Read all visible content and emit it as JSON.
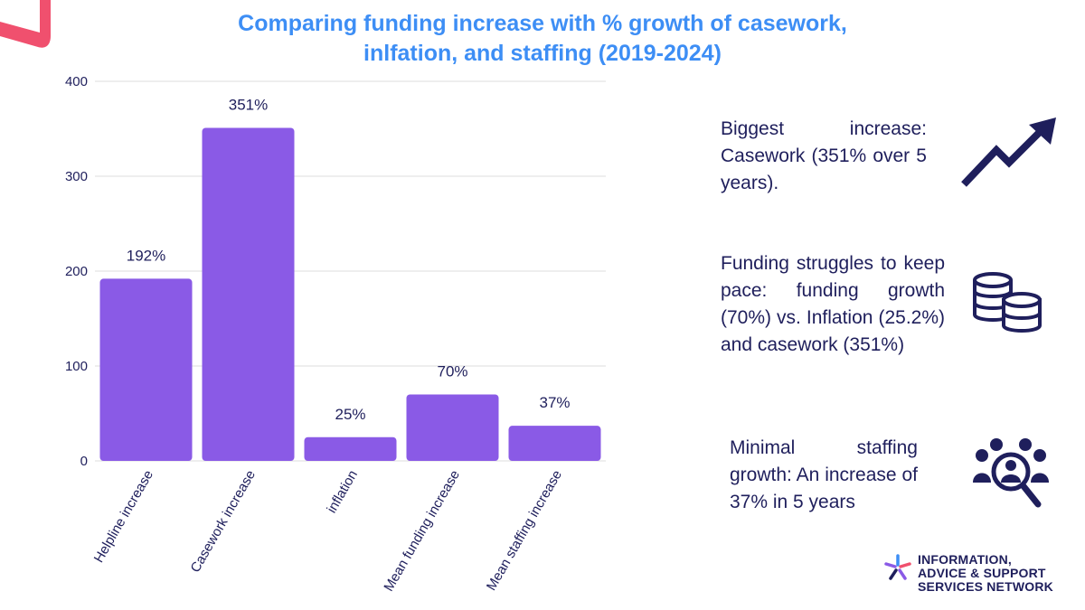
{
  "colors": {
    "bar": "#8a5ae6",
    "title": "#3d8ef5",
    "text": "#1f1f5c",
    "accent": "#f0506e",
    "grid": "#dcdcdc"
  },
  "chart_data": {
    "type": "bar",
    "title": "Comparing funding increase with % growth of casework, inlfation, and staffing (2019-2024)",
    "title_lines": [
      "Comparing funding increase with % growth of casework,",
      "inlfation, and staffing (2019-2024)"
    ],
    "categories": [
      "Helpline increase",
      "Casework increase",
      "inflation",
      "Mean funding increase",
      "Mean staffing increase"
    ],
    "values": [
      192,
      351,
      25,
      70,
      37
    ],
    "data_labels": [
      "192%",
      "351%",
      "25%",
      "70%",
      "37%"
    ],
    "ylim": [
      0,
      400
    ],
    "yticks": [
      0,
      100,
      200,
      300,
      400
    ],
    "xlabel": "",
    "ylabel": "",
    "grid": true
  },
  "insights": [
    {
      "text": "Biggest increase: Casework (351% over 5 years).",
      "icon": "trend-arrow-icon"
    },
    {
      "text": "Funding struggles to keep pace: funding growth (70%) vs. Inflation (25.2%) and casework (351%)",
      "icon": "coins-icon"
    },
    {
      "text": "Minimal staffing growth: An increase of 37% in 5 years",
      "icon": "team-search-icon"
    }
  ],
  "logo": {
    "lines": [
      "INFORMATION,",
      "ADVICE & SUPPORT",
      "SERVICES NETWORK"
    ],
    "icon": "network-star-icon"
  }
}
